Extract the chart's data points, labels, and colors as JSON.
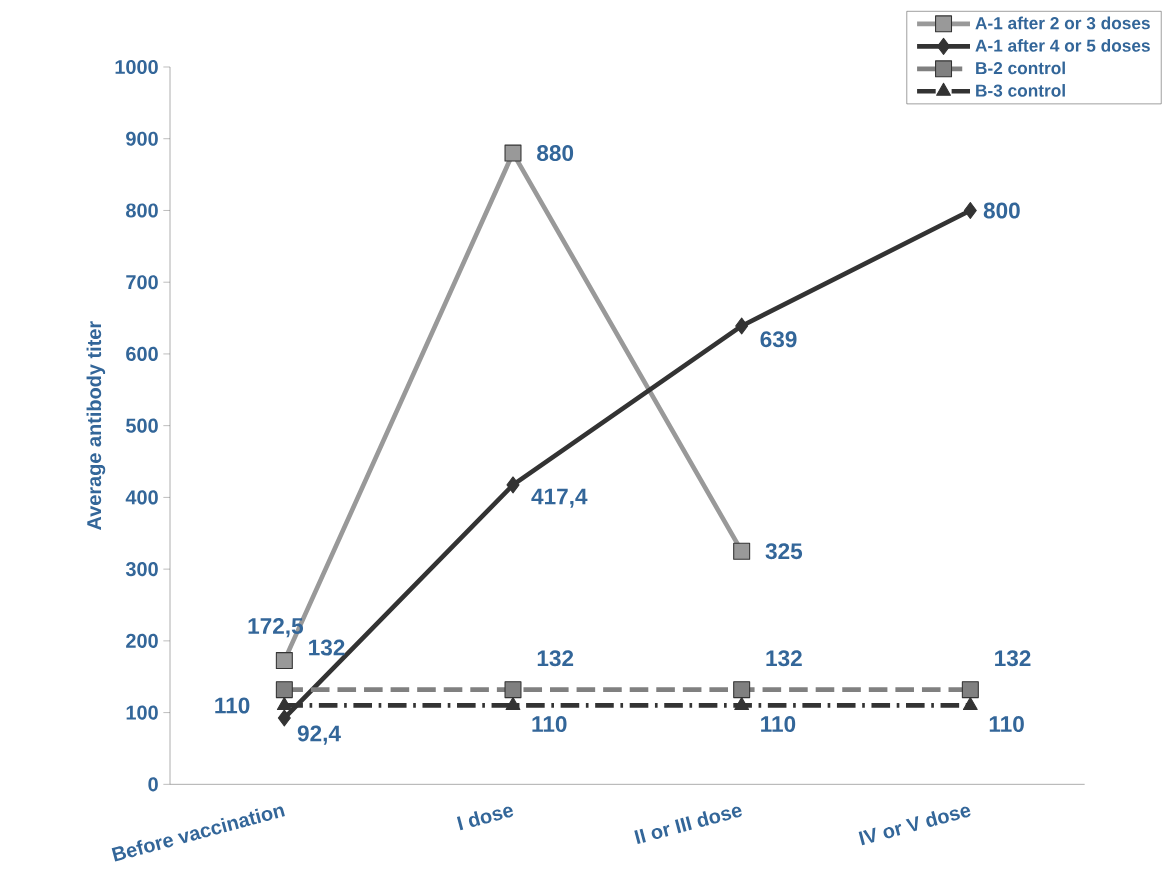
{
  "chart_data": {
    "type": "line",
    "ylabel": "Average antibody titer",
    "categories": [
      "Before vaccination",
      "I dose",
      "II or III dose",
      "IV or V dose"
    ],
    "series": [
      {
        "name": "A-1  after 2 or 3 doses",
        "color": "#999999",
        "marker": "square",
        "line_style": "solid",
        "values": [
          172.5,
          880,
          325,
          null
        ],
        "value_labels": [
          "172,5",
          "880",
          "325",
          null
        ]
      },
      {
        "name": "A-1 after 4 or 5 doses",
        "color": "#333333",
        "marker": "diamond",
        "line_style": "solid",
        "values": [
          92.4,
          417.4,
          639,
          800
        ],
        "value_labels": [
          "92,4",
          "417,4",
          "639",
          "800"
        ]
      },
      {
        "name": "B-2 control",
        "color": "#808080",
        "marker": "square",
        "line_style": "dashed",
        "values": [
          132,
          132,
          132,
          132
        ],
        "value_labels": [
          "132",
          "132",
          "132",
          "132"
        ]
      },
      {
        "name": "B-3 control",
        "color": "#333333",
        "marker": "triangle",
        "line_style": "dashdot",
        "values": [
          110,
          110,
          110,
          110
        ],
        "value_labels": [
          "110",
          "110",
          "110",
          "110"
        ]
      }
    ],
    "ylim": [
      0,
      1000
    ],
    "yticks": [
      0,
      100,
      200,
      300,
      400,
      500,
      600,
      700,
      800,
      900,
      1000
    ],
    "grid": false,
    "legend": "top right"
  }
}
